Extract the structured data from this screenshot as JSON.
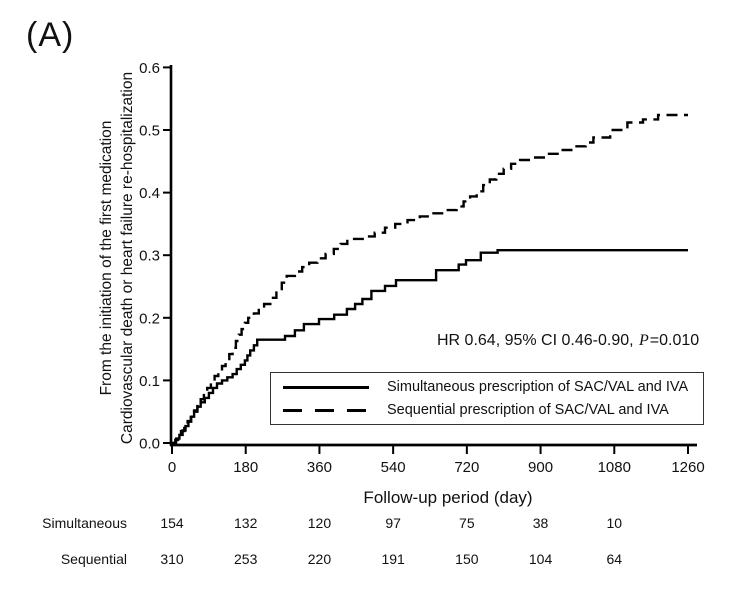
{
  "panel_label": "(A)",
  "colors": {
    "line": "#000000",
    "text": "#111111",
    "background": "#ffffff"
  },
  "chart_data": {
    "type": "line",
    "subtype": "kaplan-meier-step",
    "title": "",
    "xlabel": "Follow-up period (day)",
    "ylabel_lines": [
      "From the initiation of the first medication",
      "Cardiovascular death or heart failure re-hospitalization"
    ],
    "xlim": [
      0,
      1295
    ],
    "ylim": [
      0,
      0.6
    ],
    "x_ticks": [
      0,
      180,
      360,
      540,
      720,
      900,
      1080,
      1260
    ],
    "y_ticks": [
      0.0,
      0.1,
      0.2,
      0.3,
      0.4,
      0.5,
      0.6
    ],
    "grid": false,
    "legend_position": "inside-bottom-right",
    "annotation": {
      "prefix": "HR 0.64, 95% CI 0.46-0.90, ",
      "italic": "P",
      "suffix": "=0.010"
    },
    "legend": {
      "entries": [
        {
          "label": "Simultaneous prescription of SAC/VAL and IVA",
          "style": "solid"
        },
        {
          "label": "Sequential prescription of SAC/VAL and IVA",
          "style": "dashed"
        }
      ]
    },
    "series": [
      {
        "name": "Simultaneous prescription of SAC/VAL and IVA",
        "line_style": "solid",
        "points": [
          [
            0,
            0
          ],
          [
            10,
            0.007
          ],
          [
            18,
            0.013
          ],
          [
            26,
            0.02
          ],
          [
            33,
            0.027
          ],
          [
            40,
            0.034
          ],
          [
            47,
            0.042
          ],
          [
            54,
            0.05
          ],
          [
            62,
            0.058
          ],
          [
            70,
            0.065
          ],
          [
            80,
            0.072
          ],
          [
            90,
            0.08
          ],
          [
            100,
            0.088
          ],
          [
            110,
            0.095
          ],
          [
            122,
            0.1
          ],
          [
            135,
            0.105
          ],
          [
            148,
            0.11
          ],
          [
            158,
            0.118
          ],
          [
            168,
            0.125
          ],
          [
            178,
            0.132
          ],
          [
            184,
            0.14
          ],
          [
            191,
            0.148
          ],
          [
            200,
            0.156
          ],
          [
            208,
            0.165
          ],
          [
            276,
            0.171
          ],
          [
            300,
            0.18
          ],
          [
            322,
            0.19
          ],
          [
            359,
            0.198
          ],
          [
            396,
            0.205
          ],
          [
            427,
            0.214
          ],
          [
            447,
            0.222
          ],
          [
            465,
            0.23
          ],
          [
            487,
            0.243
          ],
          [
            520,
            0.251
          ],
          [
            547,
            0.26
          ],
          [
            645,
            0.276
          ],
          [
            700,
            0.285
          ],
          [
            718,
            0.292
          ],
          [
            754,
            0.304
          ],
          [
            795,
            0.308
          ],
          [
            1260,
            0.308
          ]
        ]
      },
      {
        "name": "Sequential prescription of SAC/VAL and IVA",
        "line_style": "dashed",
        "points": [
          [
            0,
            0
          ],
          [
            8,
            0.005
          ],
          [
            15,
            0.012
          ],
          [
            22,
            0.019
          ],
          [
            30,
            0.027
          ],
          [
            38,
            0.035
          ],
          [
            46,
            0.044
          ],
          [
            54,
            0.052
          ],
          [
            62,
            0.061
          ],
          [
            70,
            0.07
          ],
          [
            78,
            0.079
          ],
          [
            86,
            0.088
          ],
          [
            95,
            0.098
          ],
          [
            104,
            0.107
          ],
          [
            113,
            0.115
          ],
          [
            122,
            0.123
          ],
          [
            131,
            0.132
          ],
          [
            140,
            0.142
          ],
          [
            148,
            0.152
          ],
          [
            156,
            0.163
          ],
          [
            163,
            0.173
          ],
          [
            170,
            0.182
          ],
          [
            178,
            0.192
          ],
          [
            186,
            0.2
          ],
          [
            200,
            0.207
          ],
          [
            212,
            0.215
          ],
          [
            225,
            0.222
          ],
          [
            240,
            0.232
          ],
          [
            255,
            0.244
          ],
          [
            268,
            0.256
          ],
          [
            280,
            0.267
          ],
          [
            300,
            0.274
          ],
          [
            318,
            0.281
          ],
          [
            335,
            0.288
          ],
          [
            355,
            0.295
          ],
          [
            375,
            0.302
          ],
          [
            395,
            0.31
          ],
          [
            412,
            0.318
          ],
          [
            428,
            0.326
          ],
          [
            470,
            0.33
          ],
          [
            495,
            0.336
          ],
          [
            520,
            0.344
          ],
          [
            545,
            0.35
          ],
          [
            575,
            0.356
          ],
          [
            605,
            0.362
          ],
          [
            635,
            0.367
          ],
          [
            665,
            0.372
          ],
          [
            695,
            0.378
          ],
          [
            712,
            0.386
          ],
          [
            728,
            0.394
          ],
          [
            744,
            0.402
          ],
          [
            760,
            0.412
          ],
          [
            776,
            0.421
          ],
          [
            792,
            0.43
          ],
          [
            810,
            0.438
          ],
          [
            828,
            0.446
          ],
          [
            850,
            0.452
          ],
          [
            876,
            0.456
          ],
          [
            912,
            0.462
          ],
          [
            950,
            0.468
          ],
          [
            980,
            0.474
          ],
          [
            1010,
            0.48
          ],
          [
            1029,
            0.488
          ],
          [
            1070,
            0.5
          ],
          [
            1112,
            0.512
          ],
          [
            1150,
            0.517
          ],
          [
            1187,
            0.524
          ],
          [
            1260,
            0.524
          ]
        ]
      }
    ],
    "risk_table": {
      "count_days": [
        0,
        180,
        360,
        540,
        720,
        900,
        1080
      ],
      "rows": [
        {
          "label": "Simultaneous",
          "counts": [
            154,
            132,
            120,
            97,
            75,
            38,
            10
          ]
        },
        {
          "label": "Sequential",
          "counts": [
            310,
            253,
            220,
            191,
            150,
            104,
            64
          ]
        }
      ]
    }
  }
}
